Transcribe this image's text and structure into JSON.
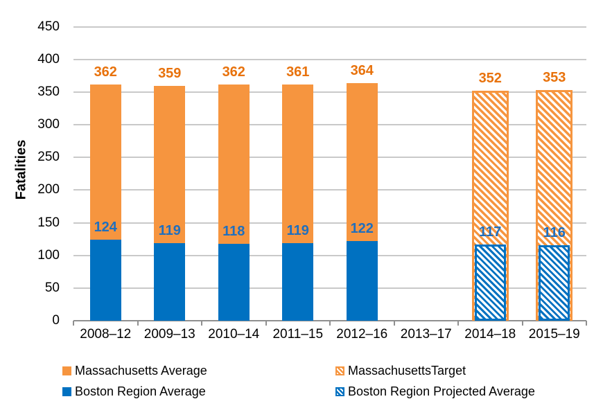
{
  "chart_data": {
    "type": "bar",
    "stacked": true,
    "title": "",
    "xlabel": "",
    "ylabel": "Fatalities",
    "ylim": [
      0,
      450
    ],
    "ytick_step": 50,
    "yticks": [
      0,
      50,
      100,
      150,
      200,
      250,
      300,
      350,
      400,
      450
    ],
    "grid": true,
    "legend_position": "bottom",
    "categories": [
      "2008–12",
      "2009–13",
      "2010–14",
      "2011–15",
      "2012–16",
      "2013–17",
      "2014–18",
      "2015–19"
    ],
    "series": [
      {
        "name": "Massachusetts Average",
        "style": "solid",
        "color_key": "orange",
        "values": [
          362,
          359,
          362,
          361,
          364,
          null,
          null,
          null
        ]
      },
      {
        "name": "MassachusettsTarget",
        "style": "hatched",
        "color_key": "orange",
        "values": [
          null,
          null,
          null,
          null,
          null,
          null,
          352,
          353
        ]
      },
      {
        "name": "Boston Region Average",
        "style": "solid",
        "color_key": "blue",
        "values": [
          124,
          119,
          118,
          119,
          122,
          null,
          null,
          null
        ]
      },
      {
        "name": "Boston Region Projected Average",
        "style": "hatched",
        "color_key": "blue",
        "values": [
          null,
          null,
          null,
          null,
          null,
          null,
          117,
          116
        ]
      }
    ]
  },
  "colors": {
    "orange": "#F6953F",
    "orange_label": "#E8720C",
    "blue": "#0071C1",
    "blue_label": "#1F6FBE",
    "gridline": "#C9C9C9",
    "axis_line": "#8F8F8F",
    "text": "#000000"
  }
}
